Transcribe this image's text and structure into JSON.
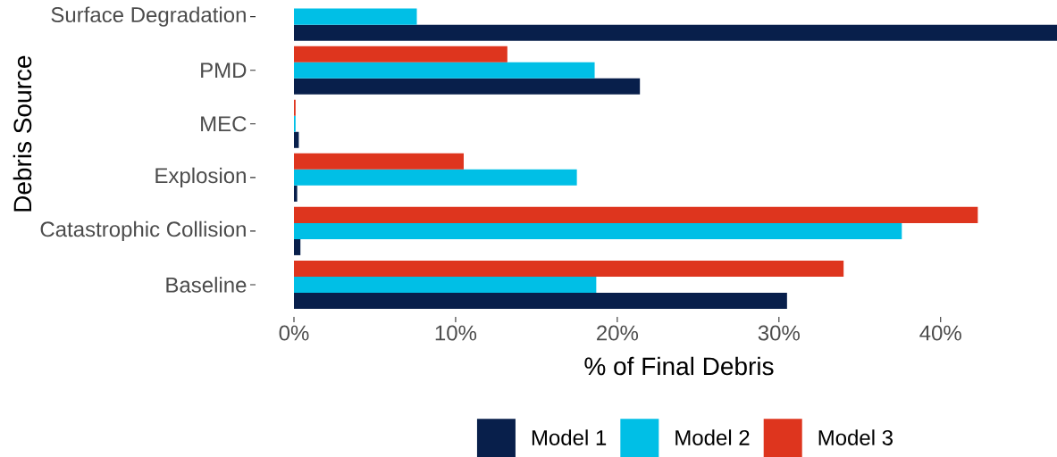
{
  "chart_data": {
    "type": "bar",
    "orientation": "horizontal",
    "xlabel": "% of Final Debris",
    "ylabel": "Debris Source",
    "categories": [
      "Surface Degradation",
      "PMD",
      "MEC",
      "Explosion",
      "Catastrophic Collision",
      "Baseline"
    ],
    "series": [
      {
        "name": "Model 1",
        "color": "#081f4b",
        "values": [
          47.2,
          21.4,
          0.3,
          0.2,
          0.4,
          30.5
        ]
      },
      {
        "name": "Model 2",
        "color": "#00bfe6",
        "values": [
          7.6,
          18.6,
          0.1,
          17.5,
          37.6,
          18.7
        ]
      },
      {
        "name": "Model 3",
        "color": "#de351e",
        "values": [
          null,
          13.2,
          0.1,
          10.5,
          42.3,
          34.0
        ]
      }
    ],
    "xlim": [
      0,
      47.2
    ],
    "xticks": [
      {
        "value": 0,
        "label": "0%"
      },
      {
        "value": 10,
        "label": "10%"
      },
      {
        "value": 20,
        "label": "20%"
      },
      {
        "value": 30,
        "label": "30%"
      },
      {
        "value": 40,
        "label": "40%"
      }
    ],
    "legend": "bottom"
  }
}
